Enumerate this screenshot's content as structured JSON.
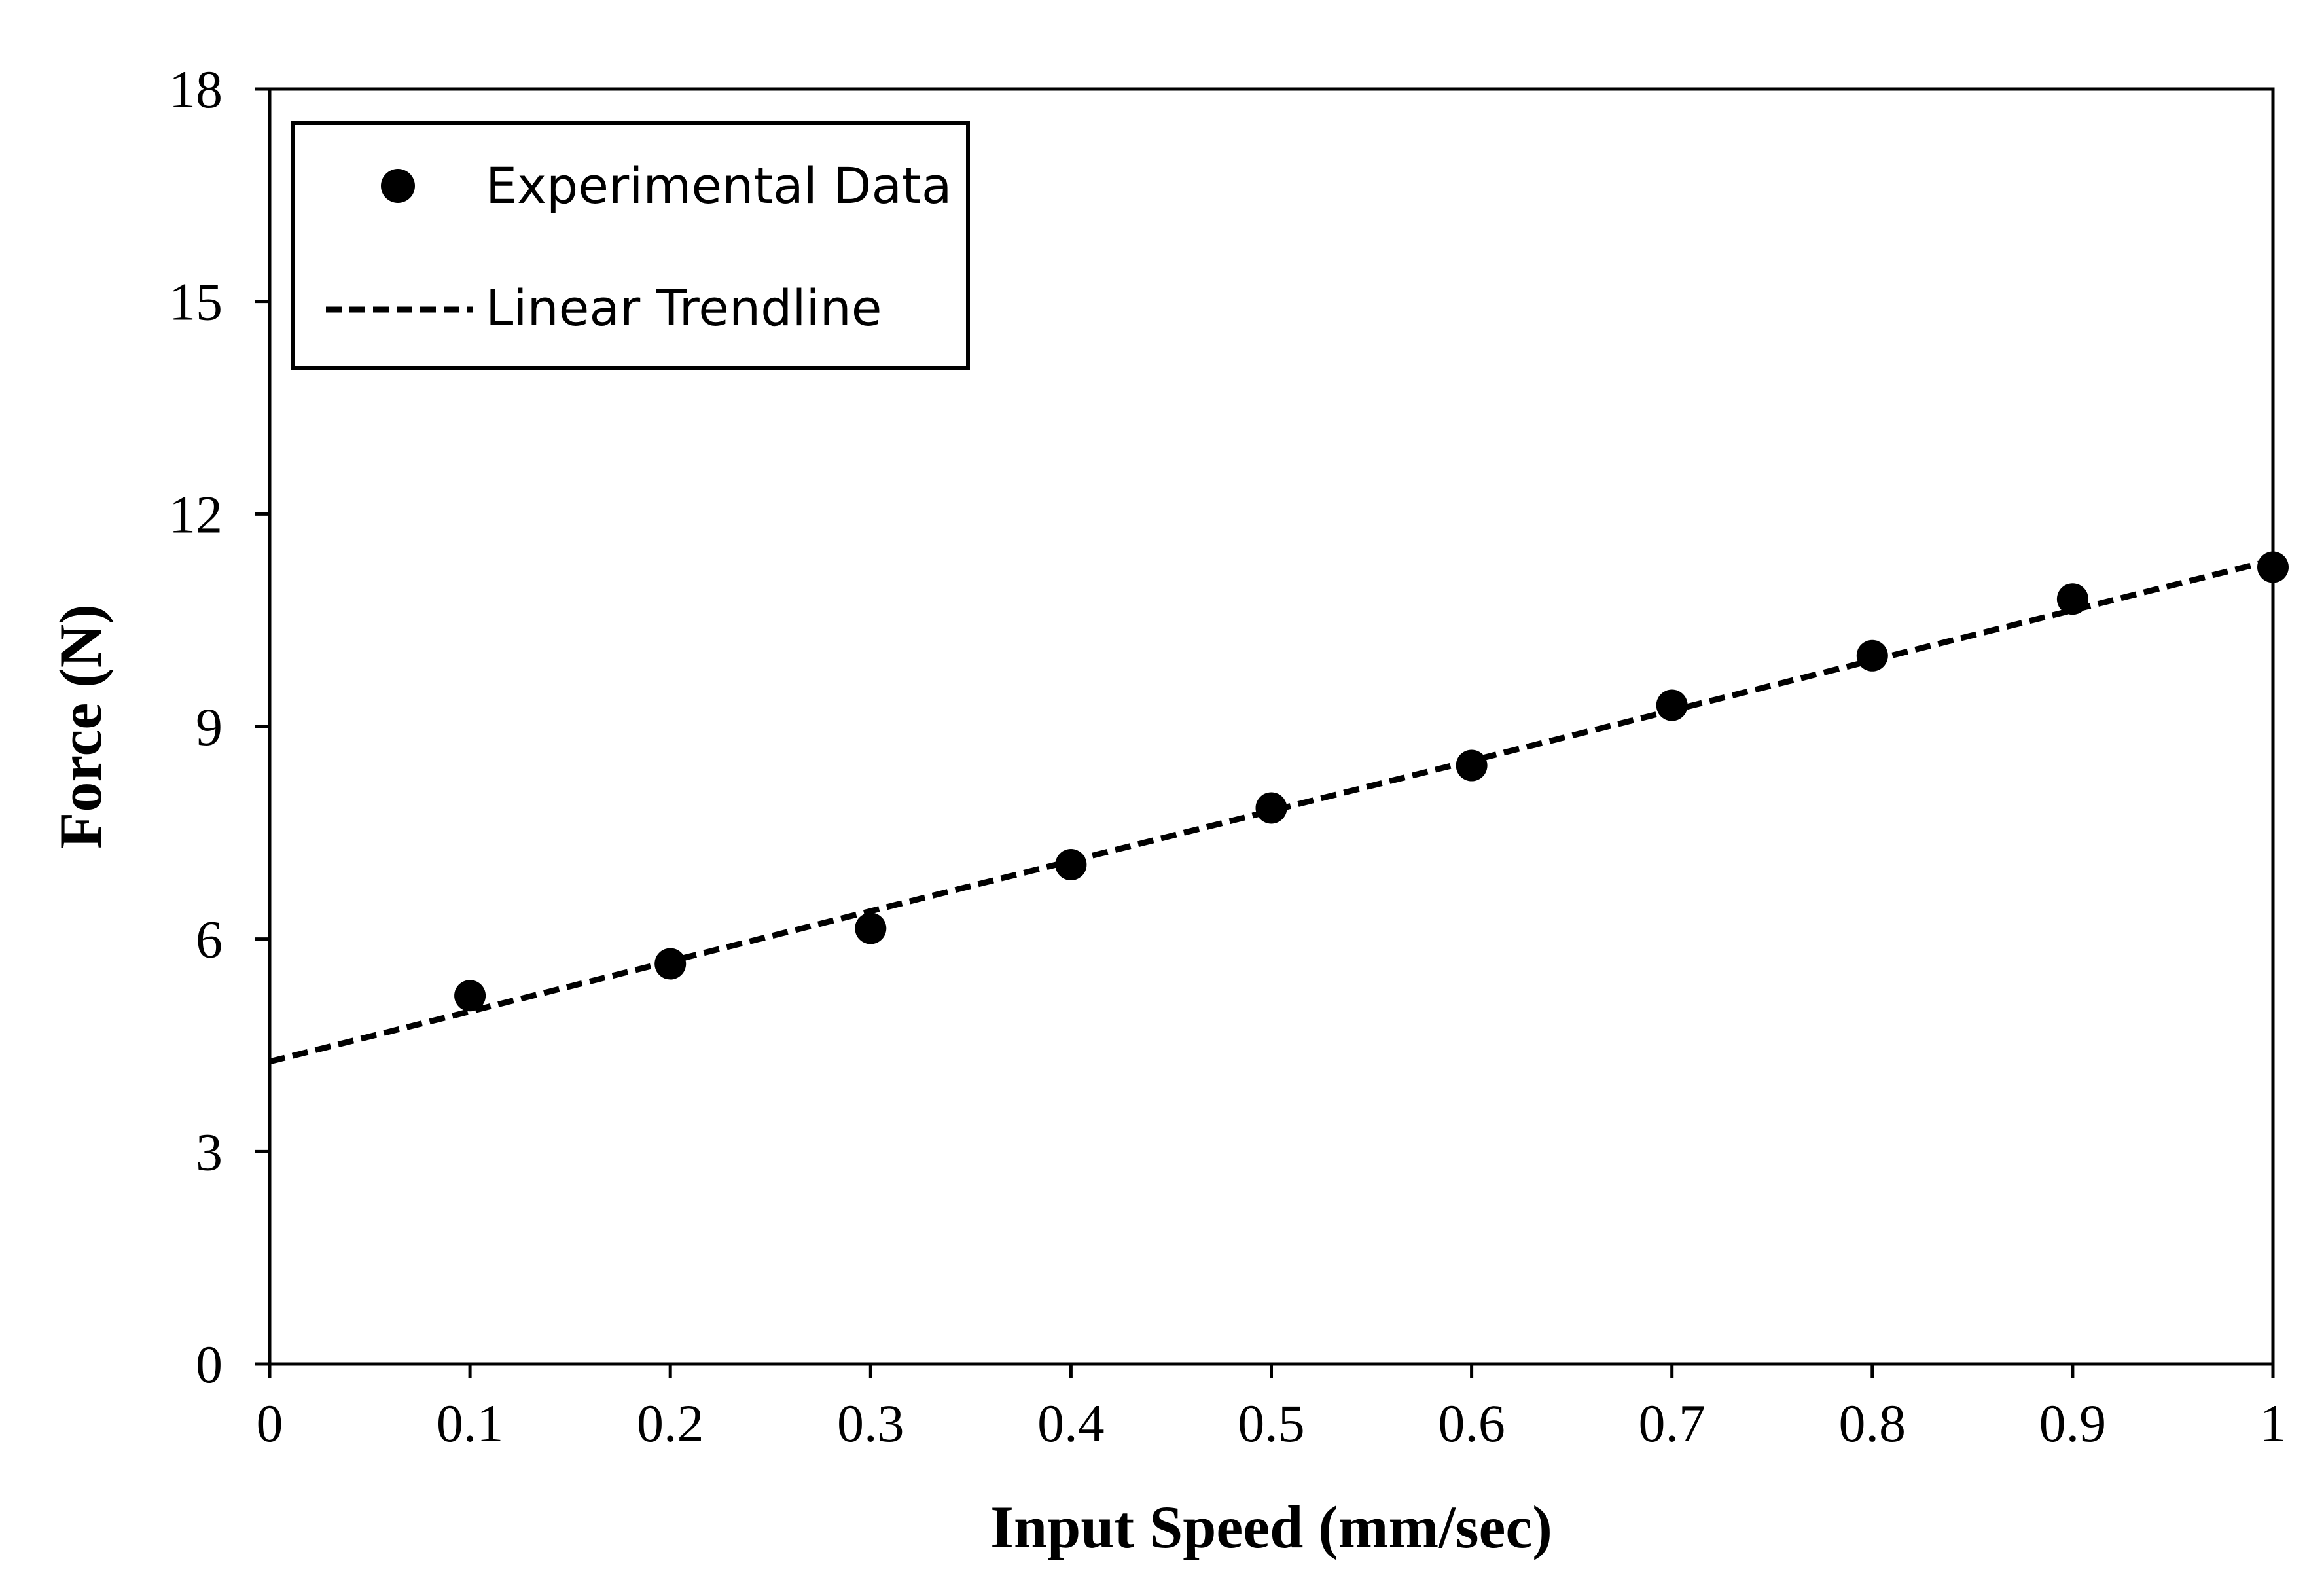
{
  "chart_data": {
    "type": "scatter",
    "title": "",
    "xlabel": "Input Speed (mm/sec)",
    "ylabel": "Force (N)",
    "xlim": [
      0,
      1
    ],
    "ylim": [
      0,
      18
    ],
    "x_ticks": [
      0,
      0.1,
      0.2,
      0.3,
      0.4,
      0.5,
      0.6,
      0.7,
      0.8,
      0.9,
      1
    ],
    "x_tick_labels": [
      "0",
      "0.1",
      "0.2",
      "0.3",
      "0.4",
      "0.5",
      "0.6",
      "0.7",
      "0.8",
      "0.9",
      "1"
    ],
    "y_ticks": [
      0,
      3,
      6,
      9,
      12,
      15,
      18
    ],
    "y_tick_labels": [
      "0",
      "3",
      "6",
      "9",
      "12",
      "15",
      "18"
    ],
    "grid": false,
    "legend_position": "top-left",
    "series": [
      {
        "name": "Experimental Data",
        "kind": "scatter",
        "marker": "filled-circle",
        "color": "#000000",
        "x": [
          0.1,
          0.2,
          0.3,
          0.4,
          0.5,
          0.6,
          0.7,
          0.8,
          0.9,
          1.0
        ],
        "y": [
          5.2,
          5.65,
          6.15,
          7.05,
          7.85,
          8.45,
          9.3,
          10.0,
          10.8,
          11.25
        ]
      },
      {
        "name": "Linear Trendline",
        "kind": "line",
        "style": "dashed",
        "color": "#000000",
        "x": [
          0,
          1
        ],
        "y": [
          4.27,
          11.35
        ]
      }
    ]
  }
}
